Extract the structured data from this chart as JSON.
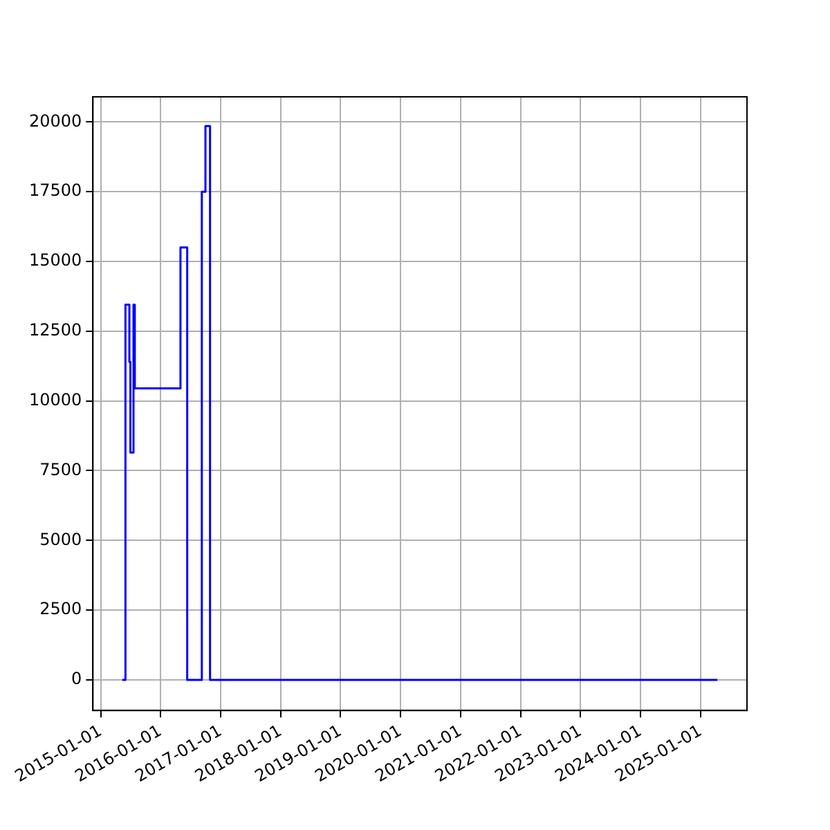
{
  "chart_data": {
    "type": "step",
    "x": [
      "2015-05-13",
      "2015-06-01",
      "2015-06-25",
      "2015-07-01",
      "2015-07-20",
      "2015-07-28",
      "2016-05-01",
      "2016-06-11",
      "2016-08-11",
      "2016-09-08",
      "2016-09-30",
      "2016-10-28",
      "2025-04-13"
    ],
    "series": [
      {
        "color": "#0000ff",
        "values": [
          0,
          13450,
          11400,
          8150,
          13450,
          10450,
          15500,
          0,
          0,
          17500,
          19850,
          0,
          0
        ]
      }
    ],
    "xlim": [
      "2014-11-15",
      "2025-10-10"
    ],
    "xticks": [
      "2015-01-01",
      "2016-01-01",
      "2017-01-01",
      "2018-01-01",
      "2019-01-01",
      "2020-01-01",
      "2021-01-01",
      "2022-01-01",
      "2023-01-01",
      "2024-01-01",
      "2025-01-01"
    ],
    "ylim": [
      -1100,
      20900
    ],
    "yticks": [
      0,
      2500,
      5000,
      7500,
      10000,
      12500,
      15000,
      17500,
      20000
    ],
    "grid": true,
    "legend": false
  }
}
